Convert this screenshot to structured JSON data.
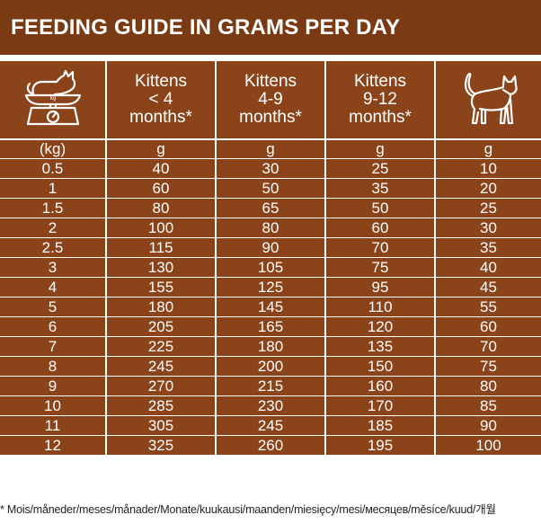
{
  "title": "FEEDING GUIDE IN GRAMS PER DAY",
  "icons": {
    "scale": "scale-with-cat-icon",
    "scale_label": "kg",
    "adult": "standing-cat-icon"
  },
  "columns": [
    {
      "lines": [
        "Kittens",
        "< 4",
        "months*"
      ]
    },
    {
      "lines": [
        "Kittens",
        "4-9",
        "months*"
      ]
    },
    {
      "lines": [
        "Kittens",
        "9-12",
        "months*"
      ]
    }
  ],
  "units": [
    "(kg)",
    "g",
    "g",
    "g",
    "g"
  ],
  "rows": [
    [
      "0.5",
      "40",
      "30",
      "25",
      "10"
    ],
    [
      "1",
      "60",
      "50",
      "35",
      "20"
    ],
    [
      "1.5",
      "80",
      "65",
      "50",
      "25"
    ],
    [
      "2",
      "100",
      "80",
      "60",
      "30"
    ],
    [
      "2.5",
      "115",
      "90",
      "70",
      "35"
    ],
    [
      "3",
      "130",
      "105",
      "75",
      "40"
    ],
    [
      "4",
      "155",
      "125",
      "95",
      "45"
    ],
    [
      "5",
      "180",
      "145",
      "110",
      "55"
    ],
    [
      "6",
      "205",
      "165",
      "120",
      "60"
    ],
    [
      "7",
      "225",
      "180",
      "135",
      "70"
    ],
    [
      "8",
      "245",
      "200",
      "150",
      "75"
    ],
    [
      "9",
      "270",
      "215",
      "160",
      "80"
    ],
    [
      "10",
      "285",
      "230",
      "170",
      "85"
    ],
    [
      "11",
      "305",
      "245",
      "185",
      "90"
    ],
    [
      "12",
      "325",
      "260",
      "195",
      "100"
    ]
  ],
  "footnote": "* Mois/måneder/meses/månader/Monate/kuukausi/maanden/miesięcy/mesi/месяцев/měsíce/kuud/개월",
  "colors": {
    "title_bg": "#7a3b14",
    "table_bg": "#8b431a",
    "text": "#ffffff"
  }
}
